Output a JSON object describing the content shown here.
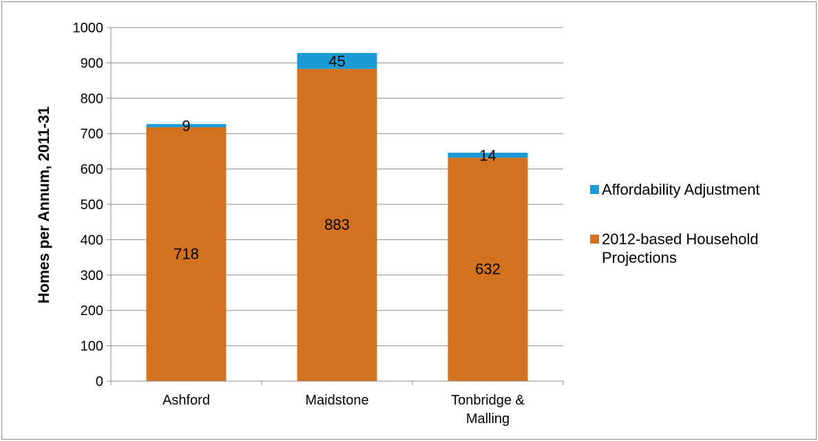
{
  "chart_data": {
    "type": "bar",
    "stacked": true,
    "categories": [
      "Ashford",
      "Maidstone",
      "Tonbridge & Malling"
    ],
    "series": [
      {
        "name": "2012-based Household Projections",
        "values": [
          718,
          883,
          632
        ],
        "color": "#d2711f"
      },
      {
        "name": "Affordability Adjustment",
        "values": [
          9,
          45,
          14
        ],
        "color": "#1b9ad6"
      }
    ],
    "ylabel": "Homes per Annum, 2011-31",
    "ylim": [
      0,
      1000
    ],
    "yticks": [
      0,
      100,
      200,
      300,
      400,
      500,
      600,
      700,
      800,
      900,
      1000
    ],
    "grid": true,
    "legend": "right",
    "legend_order": [
      "Affordability Adjustment",
      "2012-based Household Projections"
    ],
    "data_labels": true
  }
}
